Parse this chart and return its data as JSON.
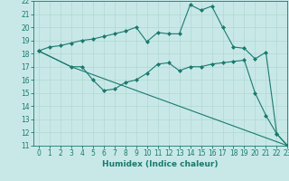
{
  "title": "",
  "xlabel": "Humidex (Indice chaleur)",
  "xlim": [
    -0.5,
    23
  ],
  "ylim": [
    11,
    22
  ],
  "yticks": [
    11,
    12,
    13,
    14,
    15,
    16,
    17,
    18,
    19,
    20,
    21,
    22
  ],
  "xticks": [
    0,
    1,
    2,
    3,
    4,
    5,
    6,
    7,
    8,
    9,
    10,
    11,
    12,
    13,
    14,
    15,
    16,
    17,
    18,
    19,
    20,
    21,
    22,
    23
  ],
  "background_color": "#c8e8e8",
  "grid_color": "#b0d8d0",
  "line_color": "#1a7a6e",
  "lines": [
    {
      "x": [
        0,
        1,
        2,
        3,
        4,
        5,
        6,
        7,
        8,
        9,
        10,
        11,
        12,
        13,
        14,
        15,
        16,
        17,
        18,
        19,
        20,
        21,
        22,
        23
      ],
      "y": [
        18.2,
        18.5,
        18.6,
        18.8,
        19.0,
        19.1,
        19.3,
        19.5,
        19.7,
        20.0,
        18.9,
        19.6,
        19.5,
        19.5,
        21.7,
        21.3,
        21.6,
        20.0,
        18.5,
        18.4,
        17.6,
        18.1,
        11.9,
        11.0
      ],
      "marker": "D",
      "markersize": 2.0
    },
    {
      "x": [
        0,
        3,
        4,
        5,
        6,
        7,
        8,
        9,
        10,
        11,
        12,
        13,
        14,
        15,
        16,
        17,
        18,
        19,
        20,
        21,
        22,
        23
      ],
      "y": [
        18.2,
        17.0,
        17.0,
        16.0,
        15.2,
        15.3,
        15.8,
        16.0,
        16.5,
        17.2,
        17.3,
        16.7,
        17.0,
        17.0,
        17.2,
        17.3,
        17.4,
        17.5,
        15.0,
        13.3,
        11.9,
        11.0
      ],
      "marker": "D",
      "markersize": 2.0
    },
    {
      "x": [
        0,
        3,
        23
      ],
      "y": [
        18.2,
        17.0,
        11.0
      ],
      "marker": null,
      "markersize": 0
    }
  ],
  "tick_fontsize": 5.5,
  "xlabel_fontsize": 6.5
}
